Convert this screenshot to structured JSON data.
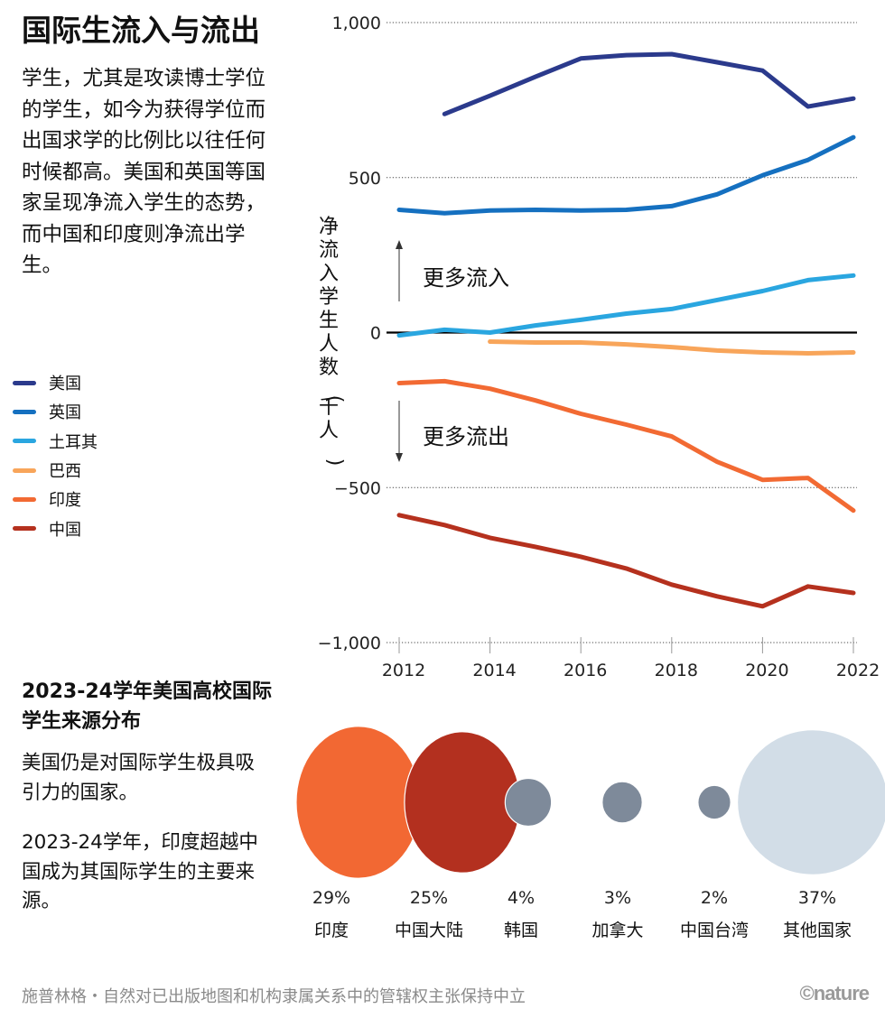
{
  "header": {
    "title": "国际生流入与流出",
    "intro": "学生，尤其是攻读博士学位的学生，如今为获得学位而出国求学的比例比以往任何时候都高。美国和英国等国家呈现净流入学生的态势，而中国和印度则净流出学生。"
  },
  "chart_data": [
    {
      "type": "line",
      "title": "国际生流入与流出",
      "xlabel": "",
      "ylabel": "净流入学生人数（千人）",
      "x": [
        2012,
        2013,
        2014,
        2015,
        2016,
        2017,
        2018,
        2019,
        2020,
        2021,
        2022
      ],
      "x_ticks": [
        "2012",
        "2014",
        "2016",
        "2018",
        "2020",
        "2022"
      ],
      "y_ticks": [
        "1,000",
        "500",
        "0",
        "−500",
        "−1,000"
      ],
      "y_tick_values": [
        1000,
        500,
        0,
        -500,
        -1000
      ],
      "ylim": [
        -1000,
        1000
      ],
      "grid": "dotted horizontal",
      "legend_position": "left",
      "annotations": {
        "inflow": "更多流入",
        "outflow": "更多流出"
      },
      "series": [
        {
          "name": "美国",
          "color": "#2b3a8c",
          "values": [
            null,
            705,
            764,
            825,
            884,
            895,
            898,
            872,
            845,
            729,
            755
          ]
        },
        {
          "name": "英国",
          "color": "#1570c0",
          "values": [
            396,
            385,
            394,
            396,
            394,
            396,
            408,
            446,
            507,
            557,
            630
          ]
        },
        {
          "name": "土耳其",
          "color": "#2aa6e0",
          "values": [
            -9,
            9,
            0,
            23,
            41,
            61,
            76,
            105,
            134,
            169,
            184
          ]
        },
        {
          "name": "巴西",
          "color": "#f8a55a",
          "values": [
            null,
            null,
            -29,
            -32,
            -32,
            -38,
            -47,
            -58,
            -64,
            -67,
            -64
          ]
        },
        {
          "name": "印度",
          "color": "#f26a33",
          "values": [
            -163,
            -157,
            -181,
            -219,
            -262,
            -297,
            -335,
            -417,
            -475,
            -469,
            -574
          ]
        },
        {
          "name": "中国",
          "color": "#b5311e",
          "values": [
            -589,
            -621,
            -662,
            -691,
            -723,
            -761,
            -813,
            -851,
            -883,
            -819,
            -840
          ]
        }
      ]
    },
    {
      "type": "bubble",
      "title": "2023-24学年美国高校国际学生来源分布",
      "categories": [
        "印度",
        "中国大陆",
        "韩国",
        "加拿大",
        "中国台湾",
        "其他国家"
      ],
      "values": [
        29,
        25,
        4,
        3,
        2,
        37
      ],
      "labels": [
        "29%",
        "25%",
        "4%",
        "3%",
        "2%",
        "37%"
      ],
      "colors": [
        "#f26833",
        "#b3301f",
        "#7e8a9a",
        "#7e8a9a",
        "#7e8a9a",
        "#d2dde7"
      ]
    }
  ],
  "section2": {
    "title": "2023-24学年美国高校国际学生来源分布",
    "text1": "美国仍是对国际学生极具吸引力的国家。",
    "text2": "2023-24学年，印度超越中国成为其国际学生的主要来源。"
  },
  "footer": {
    "credit": "施普林格・自然对已出版地图和机构隶属关系中的管辖权主张保持中立",
    "brand": "©nature"
  }
}
